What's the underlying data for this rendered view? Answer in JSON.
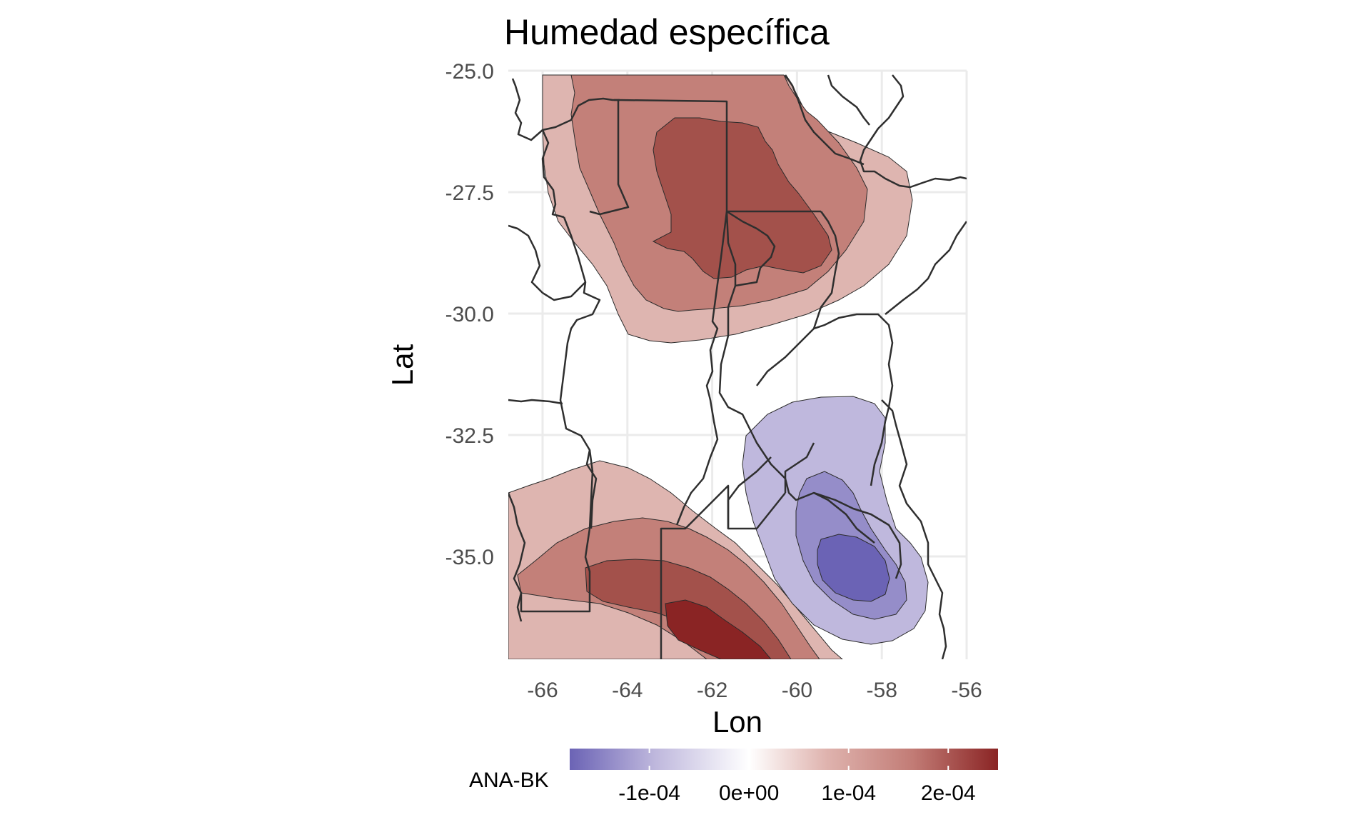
{
  "chart_data": {
    "type": "contour-map",
    "title": "Humedad específica",
    "xlabel": "Lon",
    "ylabel": "Lat",
    "xlim": [
      -67.0,
      -55.0
    ],
    "ylim": [
      -37.0,
      -25.0
    ],
    "x_ticks": [
      -66,
      -64,
      -62,
      -60,
      -58,
      -56
    ],
    "x_tick_labels": [
      "-66",
      "-64",
      "-62",
      "-60",
      "-58",
      "-56"
    ],
    "y_ticks": [
      -25.0,
      -27.5,
      -30.0,
      -32.5,
      -35.0
    ],
    "y_tick_labels": [
      "-25.0",
      "-27.5",
      "-30.0",
      "-32.5",
      "-35.0"
    ],
    "grid": true,
    "legend": {
      "title": "ANA-BK",
      "position": "bottom",
      "range": [
        -0.00018,
        0.00025
      ],
      "ticks": [
        -0.0001,
        0,
        0.0001,
        0.0002
      ],
      "tick_labels": [
        "-1e-04",
        "0e+00",
        "1e-04",
        "2e-04"
      ],
      "palette": [
        "#6b63b5",
        "#bfb8dd",
        "#ffffff",
        "#dfb3ae",
        "#c27c76",
        "#8a2424"
      ]
    },
    "contour_levels": [
      -0.00015,
      -0.0001,
      -5e-05,
      5e-05,
      0.0001,
      0.00015,
      0.0002
    ],
    "regions": [
      {
        "name": "north-positive",
        "center": [
          -61.5,
          -27.8
        ],
        "max_value": 0.00015
      },
      {
        "name": "southwest-positive",
        "center": [
          -62.0,
          -36.5
        ],
        "max_value": 0.0002
      },
      {
        "name": "east-negative",
        "center": [
          -58.8,
          -35.2
        ],
        "min_value": -0.00015
      }
    ],
    "colors": {
      "fill_neg_1": "#bfb8dd",
      "fill_neg_2": "#958dc9",
      "fill_neg_3": "#6b63b5",
      "fill_pos_1": "#deb5b0",
      "fill_pos_2": "#c38079",
      "fill_pos_3": "#a3514b",
      "fill_pos_4": "#8a2424",
      "grid": "#ebebeb",
      "border": "#333333"
    }
  }
}
